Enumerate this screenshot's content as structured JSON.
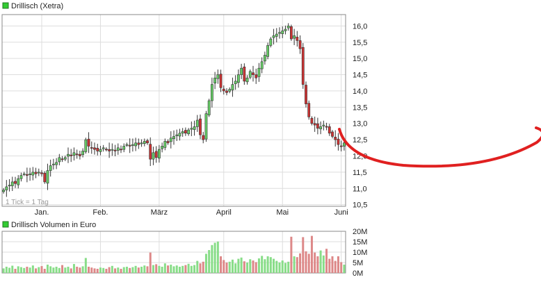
{
  "colors": {
    "legend_square": "#33cc33",
    "up": "#66cc66",
    "down": "#cc3333",
    "wick": "#333333",
    "vol_up": "#88dd88",
    "vol_down": "#dd8888",
    "grid": "#dddddd",
    "frame": "#888888",
    "annotation": "#e02020"
  },
  "chart_data": [
    {
      "type": "candlestick",
      "title": "Drillisch (Xetra)",
      "note": "1 Tick = 1 Tag",
      "ylim": [
        10.45,
        16.35
      ],
      "y_ticks": [
        "16,0",
        "15,5",
        "15,0",
        "14,5",
        "14,0",
        "13,5",
        "13,0",
        "12,5",
        "12,0",
        "11,5",
        "11,0",
        "10,5"
      ],
      "y_tick_values": [
        16.0,
        15.5,
        15.0,
        14.5,
        14.0,
        13.5,
        13.0,
        12.5,
        12.0,
        11.5,
        11.0,
        10.5
      ],
      "x_ticks": [
        {
          "label": "Jan.",
          "day": 13
        },
        {
          "label": "Feb.",
          "day": 33
        },
        {
          "label": "März",
          "day": 53
        },
        {
          "label": "April",
          "day": 75
        },
        {
          "label": "Mai",
          "day": 95
        },
        {
          "label": "Juni",
          "day": 115
        }
      ],
      "grid": true,
      "closes": [
        10.95,
        11.05,
        11.1,
        11.2,
        11.15,
        11.3,
        11.4,
        11.45,
        11.4,
        11.45,
        11.5,
        11.45,
        11.5,
        11.45,
        11.2,
        11.55,
        11.7,
        11.75,
        11.8,
        11.95,
        11.9,
        11.95,
        12.05,
        12.0,
        12.1,
        12.05,
        12.0,
        12.15,
        12.5,
        12.3,
        12.25,
        12.2,
        12.15,
        12.2,
        12.25,
        12.2,
        12.15,
        12.2,
        12.15,
        12.25,
        12.2,
        12.3,
        12.35,
        12.3,
        12.35,
        12.4,
        12.35,
        12.4,
        12.45,
        12.4,
        11.9,
        12.1,
        11.95,
        12.2,
        12.3,
        12.45,
        12.4,
        12.55,
        12.6,
        12.65,
        12.7,
        12.75,
        12.7,
        12.8,
        12.85,
        12.9,
        13.1,
        12.65,
        12.5,
        13.3,
        13.7,
        14.2,
        14.4,
        14.5,
        14.1,
        14.0,
        13.95,
        14.05,
        14.2,
        14.3,
        14.5,
        14.7,
        14.3,
        14.4,
        14.6,
        14.5,
        14.4,
        14.7,
        14.9,
        15.1,
        15.4,
        15.6,
        15.7,
        15.75,
        15.8,
        15.85,
        15.9,
        16.0,
        15.6,
        15.7,
        15.55,
        15.3,
        14.2,
        13.6,
        13.2,
        13.0,
        12.95,
        12.85,
        12.9,
        12.95,
        12.9,
        12.7,
        12.6,
        12.5,
        12.35,
        12.3,
        12.4
      ],
      "volume": {
        "title": "Drillisch Volumen in Euro",
        "ylim": [
          0,
          20
        ],
        "y_ticks": [
          "20M",
          "15M",
          "10M",
          "5M",
          "0M"
        ],
        "y_tick_values": [
          20,
          15,
          10,
          5,
          0
        ],
        "values": [
          2.2,
          3.0,
          2.5,
          3.5,
          2.0,
          3.2,
          2.8,
          2.4,
          3.0,
          2.6,
          3.6,
          2.2,
          2.8,
          3.3,
          2.0,
          4.0,
          3.2,
          2.6,
          3.0,
          2.4,
          3.8,
          2.6,
          3.0,
          2.2,
          4.3,
          3.0,
          2.6,
          3.2,
          7.2,
          3.0,
          2.6,
          2.2,
          2.0,
          2.6,
          2.4,
          2.0,
          2.8,
          3.4,
          2.2,
          2.6,
          2.0,
          2.8,
          3.0,
          2.4,
          2.8,
          3.4,
          2.6,
          3.0,
          3.6,
          3.2,
          9.8,
          3.8,
          4.2,
          3.4,
          3.0,
          4.6,
          3.6,
          4.0,
          3.2,
          3.6,
          3.0,
          3.4,
          3.8,
          4.4,
          3.4,
          3.8,
          5.8,
          4.6,
          5.4,
          9.2,
          11.0,
          13.4,
          14.5,
          15.1,
          8.0,
          6.2,
          5.0,
          5.4,
          6.4,
          4.6,
          6.8,
          7.4,
          5.6,
          5.0,
          6.6,
          6.0,
          5.2,
          7.0,
          8.2,
          6.6,
          8.0,
          7.6,
          6.8,
          5.8,
          5.0,
          6.0,
          4.8,
          5.4,
          17.4,
          8.0,
          7.6,
          9.4,
          17.2,
          10.4,
          9.2,
          17.8,
          9.8,
          8.0,
          10.8,
          8.4,
          11.6,
          6.8,
          8.0,
          5.8,
          8.0,
          5.2,
          4.0
        ]
      }
    }
  ]
}
